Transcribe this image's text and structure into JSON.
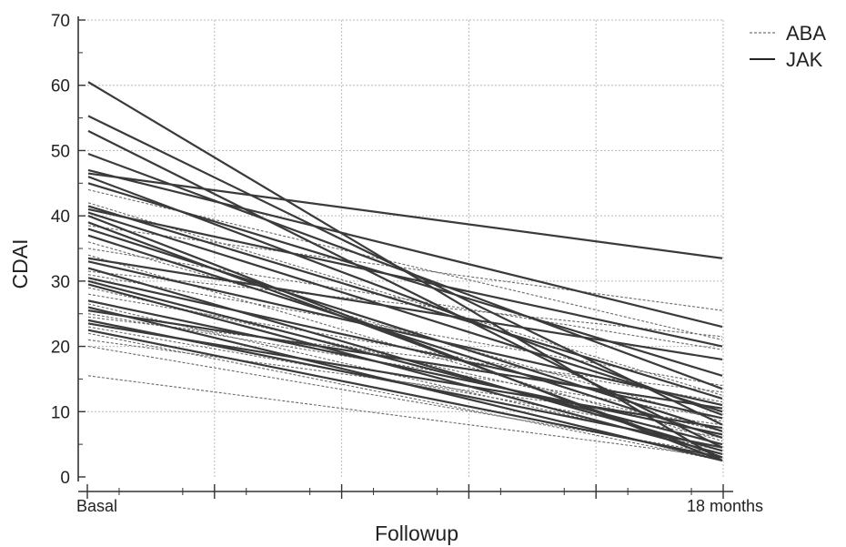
{
  "chart_data": {
    "type": "line",
    "xlabel": "Followup",
    "ylabel": "CDAI",
    "categories": [
      "Basal",
      "18 months"
    ],
    "ylim": [
      0,
      70
    ],
    "yticks": [
      0,
      10,
      20,
      30,
      40,
      50,
      60,
      70
    ],
    "grid": true,
    "legend": {
      "placement": "top-right",
      "entries": [
        {
          "label": "ABA",
          "style": "dashed"
        },
        {
          "label": "JAK",
          "style": "solid"
        }
      ]
    },
    "colors": {
      "line": "#3a3a3a",
      "dashed": "#6a6a6a"
    },
    "series": [
      {
        "group": "JAK",
        "values": [
          60.5,
          2.5
        ]
      },
      {
        "group": "JAK",
        "values": [
          55.3,
          8.0
        ]
      },
      {
        "group": "JAK",
        "values": [
          53.0,
          4.5
        ]
      },
      {
        "group": "JAK",
        "values": [
          49.5,
          13.5
        ]
      },
      {
        "group": "JAK",
        "values": [
          47.0,
          23.0
        ]
      },
      {
        "group": "JAK",
        "values": [
          46.5,
          33.5
        ]
      },
      {
        "group": "JAK",
        "values": [
          46.0,
          9.5
        ]
      },
      {
        "group": "JAK",
        "values": [
          45.0,
          15.5
        ]
      },
      {
        "group": "JAK",
        "values": [
          41.5,
          12.0
        ]
      },
      {
        "group": "JAK",
        "values": [
          41.0,
          20.0
        ]
      },
      {
        "group": "JAK",
        "values": [
          40.5,
          10.0
        ]
      },
      {
        "group": "JAK",
        "values": [
          40.0,
          2.5
        ]
      },
      {
        "group": "JAK",
        "values": [
          39.0,
          3.0
        ]
      },
      {
        "group": "JAK",
        "values": [
          38.0,
          7.0
        ]
      },
      {
        "group": "JAK",
        "values": [
          37.0,
          6.0
        ]
      },
      {
        "group": "JAK",
        "values": [
          33.5,
          18.0
        ]
      },
      {
        "group": "JAK",
        "values": [
          33.0,
          11.0
        ]
      },
      {
        "group": "JAK",
        "values": [
          32.0,
          4.0
        ]
      },
      {
        "group": "JAK",
        "values": [
          30.5,
          9.0
        ]
      },
      {
        "group": "JAK",
        "values": [
          30.0,
          5.0
        ]
      },
      {
        "group": "JAK",
        "values": [
          29.5,
          3.5
        ]
      },
      {
        "group": "JAK",
        "values": [
          27.0,
          6.5
        ]
      },
      {
        "group": "JAK",
        "values": [
          26.0,
          2.5
        ]
      },
      {
        "group": "JAK",
        "values": [
          25.5,
          10.5
        ]
      },
      {
        "group": "JAK",
        "values": [
          24.0,
          4.5
        ]
      },
      {
        "group": "JAK",
        "values": [
          23.5,
          7.5
        ]
      },
      {
        "group": "JAK",
        "values": [
          22.5,
          3.0
        ]
      },
      {
        "group": "ABA",
        "values": [
          44.0,
          21.0
        ]
      },
      {
        "group": "ABA",
        "values": [
          42.0,
          12.5
        ]
      },
      {
        "group": "ABA",
        "values": [
          38.5,
          25.5
        ]
      },
      {
        "group": "ABA",
        "values": [
          36.0,
          8.5
        ]
      },
      {
        "group": "ABA",
        "values": [
          35.0,
          19.5
        ]
      },
      {
        "group": "ABA",
        "values": [
          34.0,
          5.5
        ]
      },
      {
        "group": "ABA",
        "values": [
          31.5,
          21.5
        ]
      },
      {
        "group": "ABA",
        "values": [
          31.0,
          14.0
        ]
      },
      {
        "group": "ABA",
        "values": [
          29.0,
          7.0
        ]
      },
      {
        "group": "ABA",
        "values": [
          28.0,
          11.5
        ]
      },
      {
        "group": "ABA",
        "values": [
          26.5,
          4.0
        ]
      },
      {
        "group": "ABA",
        "values": [
          25.0,
          9.0
        ]
      },
      {
        "group": "ABA",
        "values": [
          24.5,
          13.0
        ]
      },
      {
        "group": "ABA",
        "values": [
          23.0,
          6.0
        ]
      },
      {
        "group": "ABA",
        "values": [
          22.0,
          2.5
        ]
      },
      {
        "group": "ABA",
        "values": [
          21.0,
          8.0
        ]
      },
      {
        "group": "ABA",
        "values": [
          20.0,
          3.5
        ]
      },
      {
        "group": "ABA",
        "values": [
          15.5,
          3.0
        ]
      }
    ]
  }
}
